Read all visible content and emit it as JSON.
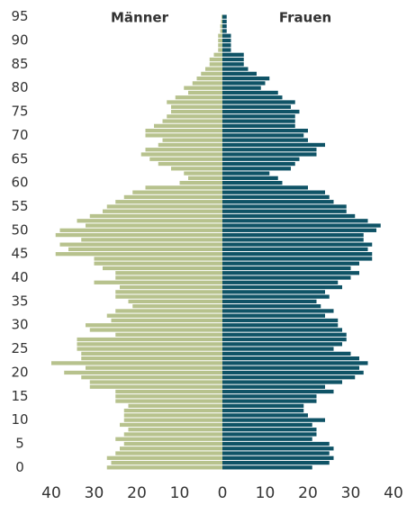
{
  "chart_data": {
    "type": "pyramid",
    "y": [
      0,
      1,
      2,
      3,
      4,
      5,
      6,
      7,
      8,
      9,
      10,
      11,
      12,
      13,
      14,
      15,
      16,
      17,
      18,
      19,
      20,
      21,
      22,
      23,
      24,
      25,
      26,
      27,
      28,
      29,
      30,
      31,
      32,
      33,
      34,
      35,
      36,
      37,
      38,
      39,
      40,
      41,
      42,
      43,
      44,
      45,
      46,
      47,
      48,
      49,
      50,
      51,
      52,
      53,
      54,
      55,
      56,
      57,
      58,
      59,
      60,
      61,
      62,
      63,
      64,
      65,
      66,
      67,
      68,
      69,
      70,
      71,
      72,
      73,
      74,
      75,
      76,
      77,
      78,
      79,
      80,
      81,
      82,
      83,
      84,
      85,
      86,
      87,
      88,
      89,
      90,
      91,
      92,
      93,
      94,
      95
    ],
    "series": [
      {
        "name": "Männer",
        "color": "#b7c28d",
        "side": "left",
        "values": [
          27,
          26,
          27,
          25,
          24,
          23,
          25,
          23,
          22,
          24,
          23,
          23,
          23,
          22,
          25,
          25,
          25,
          31,
          31,
          33,
          37,
          32,
          40,
          33,
          33,
          34,
          34,
          34,
          25,
          31,
          32,
          26,
          27,
          25,
          21,
          22,
          25,
          25,
          24,
          30,
          25,
          25,
          28,
          30,
          30,
          39,
          36,
          38,
          33,
          39,
          38,
          32,
          34,
          31,
          28,
          27,
          25,
          23,
          21,
          18,
          10,
          8,
          9,
          12,
          15,
          17,
          19,
          18,
          15,
          14,
          18,
          18,
          16,
          14,
          13,
          12,
          12,
          13,
          11,
          8,
          9,
          7,
          6,
          5,
          4,
          3,
          3,
          2,
          1,
          1,
          1,
          1,
          0.5,
          0.5,
          0.3,
          0.2
        ]
      },
      {
        "name": "Frauen",
        "color": "#0f5366",
        "side": "right",
        "values": [
          21,
          25,
          26,
          25,
          26,
          25,
          21,
          22,
          22,
          21,
          24,
          20,
          19,
          19,
          22,
          22,
          26,
          24,
          28,
          31,
          33,
          32,
          34,
          32,
          30,
          26,
          28,
          29,
          29,
          28,
          27,
          27,
          24,
          26,
          23,
          22,
          25,
          24,
          28,
          27,
          30,
          32,
          30,
          32,
          35,
          35,
          34,
          35,
          33,
          33,
          36,
          37,
          34,
          31,
          29,
          29,
          26,
          25,
          24,
          20,
          14,
          13,
          11,
          16,
          17,
          18,
          22,
          22,
          24,
          20,
          19,
          20,
          17,
          17,
          17,
          18,
          16,
          17,
          14,
          13,
          9,
          10,
          11,
          8,
          6,
          5,
          5,
          5,
          2,
          2,
          2,
          2,
          1,
          1,
          1,
          1
        ]
      }
    ],
    "xlim": [
      0,
      40
    ],
    "xticks": [
      0,
      10,
      20,
      30,
      40
    ],
    "ylim": [
      -0.5,
      95.5
    ],
    "yticks": [
      0,
      5,
      10,
      15,
      20,
      25,
      30,
      35,
      40,
      45,
      50,
      55,
      60,
      65,
      70,
      75,
      80,
      85,
      90,
      95
    ]
  }
}
